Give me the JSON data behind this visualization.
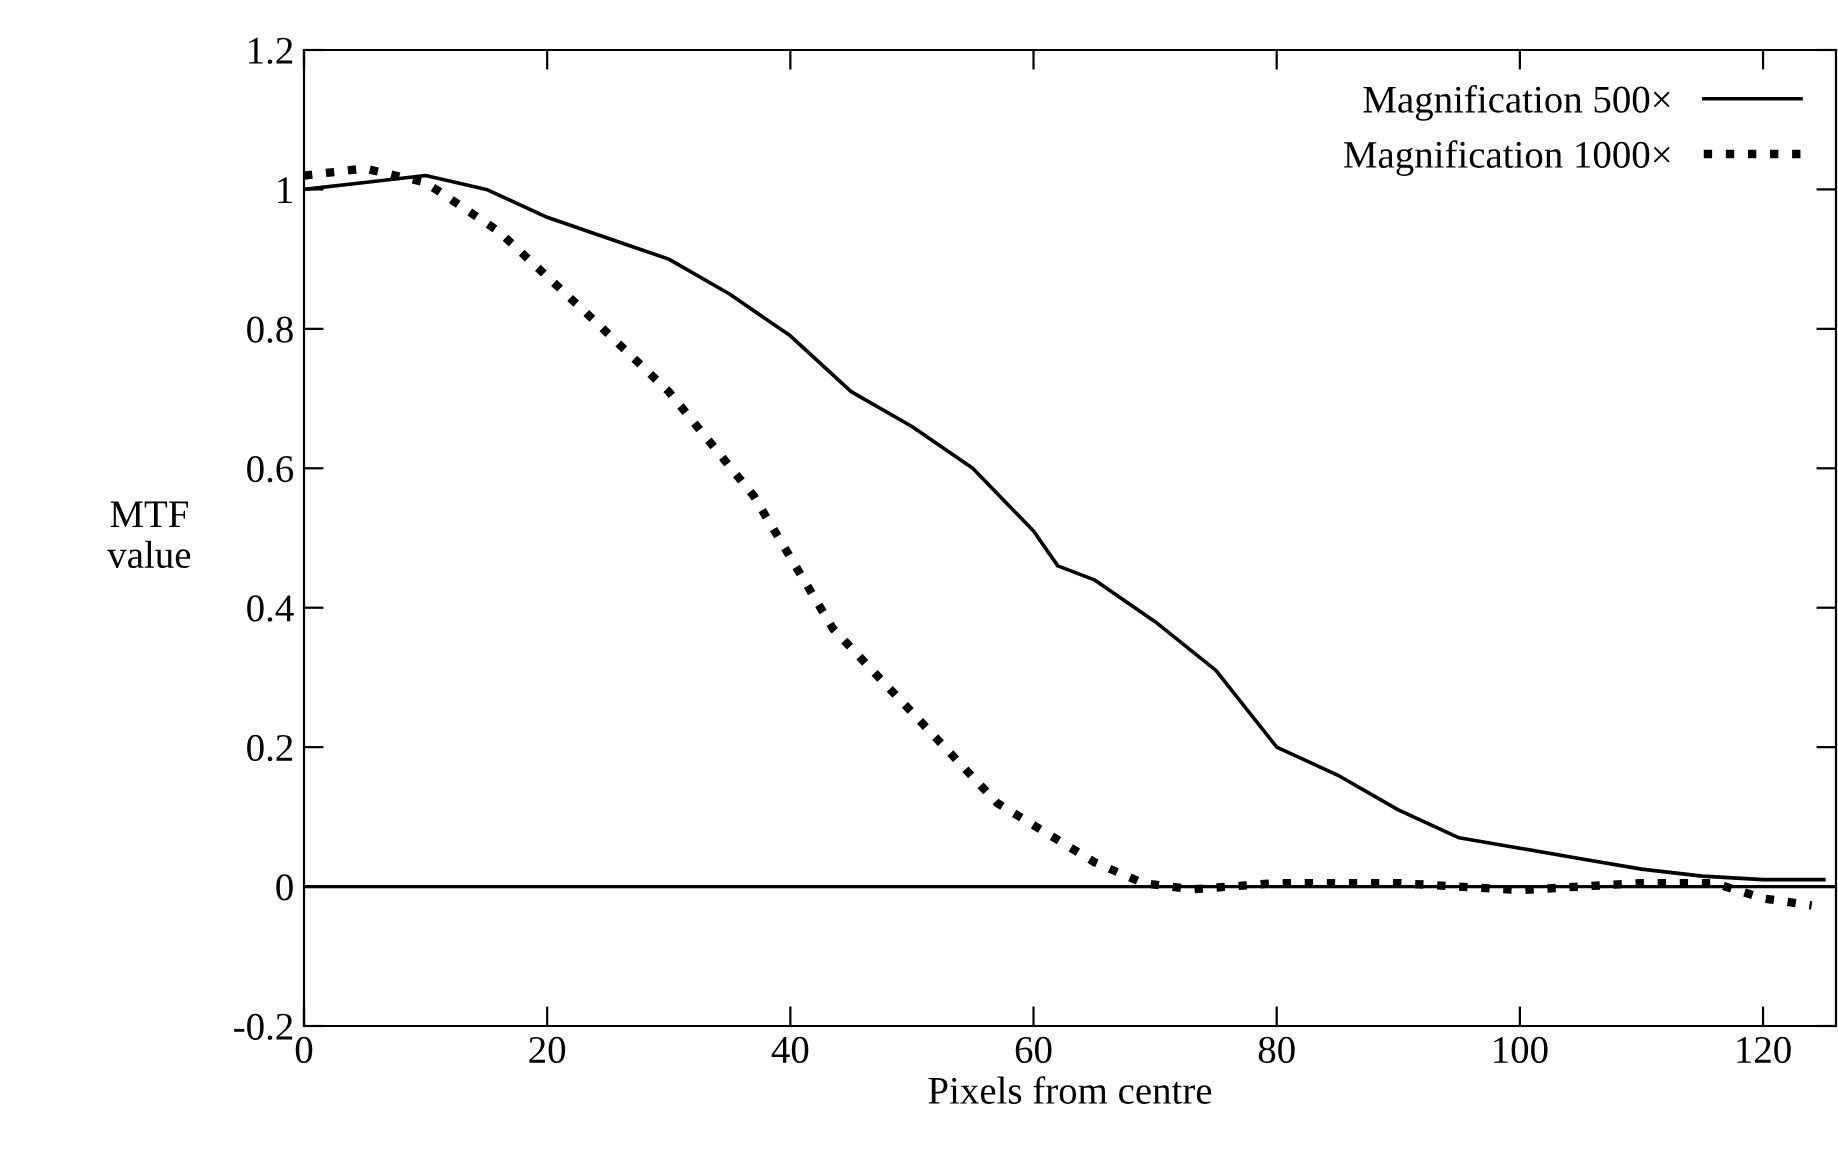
{
  "chart_data": {
    "type": "line",
    "xlabel": "Pixels from centre",
    "ylabel": "MTF\nvalue",
    "xlim": [
      0,
      126
    ],
    "xticks": [
      0,
      20,
      40,
      60,
      80,
      100,
      120
    ],
    "ylim": [
      -0.2,
      1.2
    ],
    "yticks": [
      -0.2,
      0,
      0.2,
      0.4,
      0.6,
      0.8,
      1,
      1.2
    ],
    "grid": false,
    "legend": "top right",
    "marker": "none",
    "ref_lines": [
      {
        "axis": "y",
        "value": 0,
        "color": "#000000",
        "line_style": "solid"
      }
    ],
    "series": [
      {
        "name": "Magnification 500×",
        "color": "#000000",
        "line_style": "solid",
        "x": [
          0,
          5,
          10,
          15,
          20,
          25,
          30,
          35,
          40,
          45,
          50,
          55,
          60,
          62,
          65,
          70,
          75,
          80,
          85,
          90,
          95,
          100,
          105,
          110,
          115,
          120,
          125
        ],
        "values": [
          1.0,
          1.01,
          1.02,
          1.0,
          0.96,
          0.93,
          0.9,
          0.85,
          0.79,
          0.71,
          0.66,
          0.6,
          0.51,
          0.46,
          0.44,
          0.38,
          0.31,
          0.2,
          0.16,
          0.11,
          0.07,
          0.055,
          0.04,
          0.025,
          0.015,
          0.01,
          0.01
        ]
      },
      {
        "name": "Magnification 1000×",
        "color": "#000000",
        "line_style": "dotted",
        "x": [
          0,
          5,
          10,
          16,
          24,
          30,
          37,
          43.5,
          50,
          57,
          65,
          69,
          73,
          80,
          90,
          100,
          110,
          116,
          120,
          124
        ],
        "values": [
          1.02,
          1.03,
          1.01,
          0.94,
          0.81,
          0.71,
          0.56,
          0.37,
          0.25,
          0.12,
          0.035,
          0.005,
          -0.004,
          0.005,
          0.005,
          -0.005,
          0.005,
          0.005,
          -0.017,
          -0.027
        ]
      }
    ]
  }
}
